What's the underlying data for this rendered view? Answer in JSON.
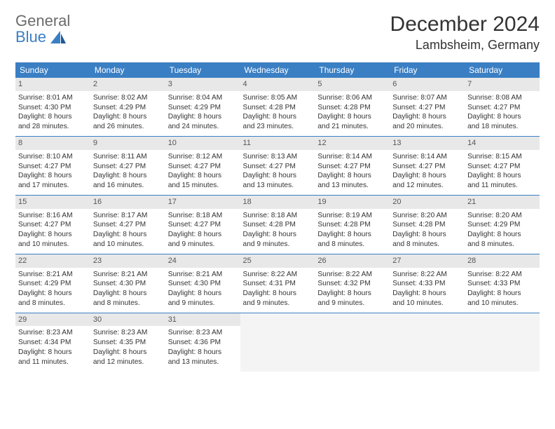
{
  "logo": {
    "word1": "General",
    "word2": "Blue"
  },
  "title": "December 2024",
  "location": "Lambsheim, Germany",
  "colors": {
    "header_bg": "#3a7fc4",
    "header_text": "#ffffff",
    "daynum_bg": "#e8e8e8",
    "border": "#3a7fc4",
    "empty_bg": "#f4f4f4",
    "body_text": "#333333"
  },
  "dow": [
    "Sunday",
    "Monday",
    "Tuesday",
    "Wednesday",
    "Thursday",
    "Friday",
    "Saturday"
  ],
  "weeks": [
    [
      {
        "n": "1",
        "sr": "Sunrise: 8:01 AM",
        "ss": "Sunset: 4:30 PM",
        "d1": "Daylight: 8 hours",
        "d2": "and 28 minutes."
      },
      {
        "n": "2",
        "sr": "Sunrise: 8:02 AM",
        "ss": "Sunset: 4:29 PM",
        "d1": "Daylight: 8 hours",
        "d2": "and 26 minutes."
      },
      {
        "n": "3",
        "sr": "Sunrise: 8:04 AM",
        "ss": "Sunset: 4:29 PM",
        "d1": "Daylight: 8 hours",
        "d2": "and 24 minutes."
      },
      {
        "n": "4",
        "sr": "Sunrise: 8:05 AM",
        "ss": "Sunset: 4:28 PM",
        "d1": "Daylight: 8 hours",
        "d2": "and 23 minutes."
      },
      {
        "n": "5",
        "sr": "Sunrise: 8:06 AM",
        "ss": "Sunset: 4:28 PM",
        "d1": "Daylight: 8 hours",
        "d2": "and 21 minutes."
      },
      {
        "n": "6",
        "sr": "Sunrise: 8:07 AM",
        "ss": "Sunset: 4:27 PM",
        "d1": "Daylight: 8 hours",
        "d2": "and 20 minutes."
      },
      {
        "n": "7",
        "sr": "Sunrise: 8:08 AM",
        "ss": "Sunset: 4:27 PM",
        "d1": "Daylight: 8 hours",
        "d2": "and 18 minutes."
      }
    ],
    [
      {
        "n": "8",
        "sr": "Sunrise: 8:10 AM",
        "ss": "Sunset: 4:27 PM",
        "d1": "Daylight: 8 hours",
        "d2": "and 17 minutes."
      },
      {
        "n": "9",
        "sr": "Sunrise: 8:11 AM",
        "ss": "Sunset: 4:27 PM",
        "d1": "Daylight: 8 hours",
        "d2": "and 16 minutes."
      },
      {
        "n": "10",
        "sr": "Sunrise: 8:12 AM",
        "ss": "Sunset: 4:27 PM",
        "d1": "Daylight: 8 hours",
        "d2": "and 15 minutes."
      },
      {
        "n": "11",
        "sr": "Sunrise: 8:13 AM",
        "ss": "Sunset: 4:27 PM",
        "d1": "Daylight: 8 hours",
        "d2": "and 13 minutes."
      },
      {
        "n": "12",
        "sr": "Sunrise: 8:14 AM",
        "ss": "Sunset: 4:27 PM",
        "d1": "Daylight: 8 hours",
        "d2": "and 13 minutes."
      },
      {
        "n": "13",
        "sr": "Sunrise: 8:14 AM",
        "ss": "Sunset: 4:27 PM",
        "d1": "Daylight: 8 hours",
        "d2": "and 12 minutes."
      },
      {
        "n": "14",
        "sr": "Sunrise: 8:15 AM",
        "ss": "Sunset: 4:27 PM",
        "d1": "Daylight: 8 hours",
        "d2": "and 11 minutes."
      }
    ],
    [
      {
        "n": "15",
        "sr": "Sunrise: 8:16 AM",
        "ss": "Sunset: 4:27 PM",
        "d1": "Daylight: 8 hours",
        "d2": "and 10 minutes."
      },
      {
        "n": "16",
        "sr": "Sunrise: 8:17 AM",
        "ss": "Sunset: 4:27 PM",
        "d1": "Daylight: 8 hours",
        "d2": "and 10 minutes."
      },
      {
        "n": "17",
        "sr": "Sunrise: 8:18 AM",
        "ss": "Sunset: 4:27 PM",
        "d1": "Daylight: 8 hours",
        "d2": "and 9 minutes."
      },
      {
        "n": "18",
        "sr": "Sunrise: 8:18 AM",
        "ss": "Sunset: 4:28 PM",
        "d1": "Daylight: 8 hours",
        "d2": "and 9 minutes."
      },
      {
        "n": "19",
        "sr": "Sunrise: 8:19 AM",
        "ss": "Sunset: 4:28 PM",
        "d1": "Daylight: 8 hours",
        "d2": "and 8 minutes."
      },
      {
        "n": "20",
        "sr": "Sunrise: 8:20 AM",
        "ss": "Sunset: 4:28 PM",
        "d1": "Daylight: 8 hours",
        "d2": "and 8 minutes."
      },
      {
        "n": "21",
        "sr": "Sunrise: 8:20 AM",
        "ss": "Sunset: 4:29 PM",
        "d1": "Daylight: 8 hours",
        "d2": "and 8 minutes."
      }
    ],
    [
      {
        "n": "22",
        "sr": "Sunrise: 8:21 AM",
        "ss": "Sunset: 4:29 PM",
        "d1": "Daylight: 8 hours",
        "d2": "and 8 minutes."
      },
      {
        "n": "23",
        "sr": "Sunrise: 8:21 AM",
        "ss": "Sunset: 4:30 PM",
        "d1": "Daylight: 8 hours",
        "d2": "and 8 minutes."
      },
      {
        "n": "24",
        "sr": "Sunrise: 8:21 AM",
        "ss": "Sunset: 4:30 PM",
        "d1": "Daylight: 8 hours",
        "d2": "and 9 minutes."
      },
      {
        "n": "25",
        "sr": "Sunrise: 8:22 AM",
        "ss": "Sunset: 4:31 PM",
        "d1": "Daylight: 8 hours",
        "d2": "and 9 minutes."
      },
      {
        "n": "26",
        "sr": "Sunrise: 8:22 AM",
        "ss": "Sunset: 4:32 PM",
        "d1": "Daylight: 8 hours",
        "d2": "and 9 minutes."
      },
      {
        "n": "27",
        "sr": "Sunrise: 8:22 AM",
        "ss": "Sunset: 4:33 PM",
        "d1": "Daylight: 8 hours",
        "d2": "and 10 minutes."
      },
      {
        "n": "28",
        "sr": "Sunrise: 8:22 AM",
        "ss": "Sunset: 4:33 PM",
        "d1": "Daylight: 8 hours",
        "d2": "and 10 minutes."
      }
    ],
    [
      {
        "n": "29",
        "sr": "Sunrise: 8:23 AM",
        "ss": "Sunset: 4:34 PM",
        "d1": "Daylight: 8 hours",
        "d2": "and 11 minutes."
      },
      {
        "n": "30",
        "sr": "Sunrise: 8:23 AM",
        "ss": "Sunset: 4:35 PM",
        "d1": "Daylight: 8 hours",
        "d2": "and 12 minutes."
      },
      {
        "n": "31",
        "sr": "Sunrise: 8:23 AM",
        "ss": "Sunset: 4:36 PM",
        "d1": "Daylight: 8 hours",
        "d2": "and 13 minutes."
      },
      null,
      null,
      null,
      null
    ]
  ]
}
